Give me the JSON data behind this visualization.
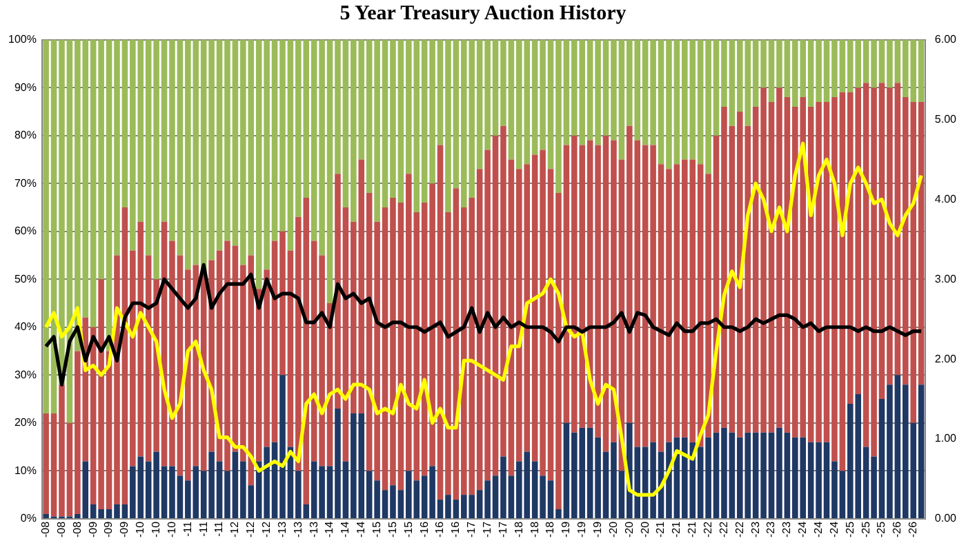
{
  "chart_data": {
    "type": "bar",
    "title": "5 Year Treasury Auction History",
    "stacked": true,
    "grid": "y",
    "legend": false,
    "marker": "none",
    "line_style": "solid",
    "categories": [
      "-08",
      null,
      "-08",
      null,
      "-08",
      null,
      "-09",
      null,
      "-09",
      null,
      "-09",
      null,
      "-10",
      null,
      "-10",
      null,
      "-10",
      null,
      "-11",
      null,
      "-11",
      null,
      "-11",
      null,
      "-12",
      null,
      "-12",
      null,
      "-12",
      null,
      "-13",
      null,
      "-13",
      null,
      "-13",
      null,
      "-14",
      null,
      "-14",
      null,
      "-14",
      null,
      "-15",
      null,
      "-15",
      null,
      "-15",
      null,
      "-16",
      null,
      "-16",
      null,
      "-16",
      null,
      "-17",
      null,
      "-17",
      null,
      "-17",
      null,
      "-18",
      null,
      "-18",
      null,
      "-18",
      null,
      "-19",
      null,
      "-19",
      null,
      "-19",
      null,
      "-20",
      null,
      "-20",
      null,
      "-20",
      null,
      "-21",
      null,
      "-21",
      null,
      "-21",
      null,
      "-22",
      null,
      "-22",
      null,
      "-22",
      null,
      "-23",
      null,
      "-23",
      null,
      "-23",
      null,
      "-24",
      null,
      "-24",
      null,
      "-24",
      null,
      "-25",
      null,
      "-25",
      null,
      "-25",
      null,
      "-26",
      null,
      "-26",
      null
    ],
    "ylim": [
      0,
      100
    ],
    "yticks": [
      {
        "value": 0,
        "label": "0%"
      },
      {
        "value": 10,
        "label": "10%"
      },
      {
        "value": 20,
        "label": "20%"
      },
      {
        "value": 30,
        "label": "30%"
      },
      {
        "value": 40,
        "label": "40%"
      },
      {
        "value": 50,
        "label": "50%"
      },
      {
        "value": 60,
        "label": "60%"
      },
      {
        "value": 70,
        "label": "70%"
      },
      {
        "value": 80,
        "label": "80%"
      },
      {
        "value": 90,
        "label": "90%"
      },
      {
        "value": 100,
        "label": "100%"
      }
    ],
    "y2lim": [
      0,
      6
    ],
    "y2ticks": [
      {
        "value": 0,
        "label": "0.00"
      },
      {
        "value": 1,
        "label": "1.00"
      },
      {
        "value": 2,
        "label": "2.00"
      },
      {
        "value": 3,
        "label": "3.00"
      },
      {
        "value": 4,
        "label": "4.00"
      },
      {
        "value": 5,
        "label": "5.00"
      },
      {
        "value": 6,
        "label": "6.00"
      }
    ],
    "series": [
      {
        "color": "#1f3864",
        "values": [
          1,
          0.5,
          0.5,
          0.5,
          1,
          12,
          3,
          2,
          2,
          3,
          3,
          11,
          13,
          12,
          14,
          11,
          11,
          9,
          8,
          11,
          10,
          14,
          12,
          10,
          14,
          12,
          7,
          12,
          15,
          16,
          30,
          15,
          10,
          3,
          12,
          11,
          11,
          23,
          12,
          22,
          22,
          10,
          8,
          6,
          7,
          6,
          10,
          8,
          9,
          11,
          4,
          5,
          4,
          5,
          5,
          6,
          8,
          9,
          13,
          9,
          12,
          14,
          12,
          9,
          8,
          2,
          20,
          18,
          19,
          19,
          17,
          14,
          16,
          10,
          20,
          15,
          15,
          16,
          14,
          16,
          17,
          17,
          16,
          15,
          17,
          18,
          19,
          18,
          17,
          18,
          18,
          18,
          18,
          19,
          18,
          17,
          17,
          16,
          16,
          16,
          12,
          10,
          24,
          26,
          15,
          13,
          25,
          28,
          30,
          28,
          20,
          28
        ]
      },
      {
        "color": "#c0504d",
        "values": [
          21,
          21.5,
          27.5,
          19.5,
          34,
          30,
          37,
          48,
          33,
          52,
          62,
          45,
          49,
          43,
          36,
          51,
          47,
          46,
          44,
          42,
          42,
          40,
          44,
          48,
          43,
          41,
          48,
          36,
          37,
          42,
          30,
          41,
          53,
          64,
          46,
          44,
          34,
          49,
          53,
          40,
          53,
          58,
          54,
          59,
          60,
          60,
          62,
          56,
          57,
          59,
          74,
          59,
          65,
          60,
          62,
          67,
          69,
          71,
          69,
          66,
          61,
          60,
          64,
          68,
          65,
          66,
          58,
          62,
          59,
          60,
          61,
          66,
          63,
          65,
          62,
          64,
          63,
          62,
          60,
          57,
          57,
          58,
          59,
          59,
          55,
          62,
          67,
          64,
          68,
          64,
          68,
          72,
          69,
          71,
          70,
          69,
          71,
          70,
          71,
          71,
          76,
          79,
          65,
          64,
          76,
          77,
          66,
          62,
          61,
          60,
          67,
          59
        ]
      },
      {
        "color": "#9bbb59",
        "values": [
          78,
          78,
          72,
          80,
          65,
          58,
          60,
          50,
          65,
          45,
          35,
          44,
          38,
          45,
          50,
          38,
          42,
          45,
          48,
          47,
          48,
          46,
          44,
          42,
          43,
          47,
          45,
          52,
          48,
          42,
          40,
          44,
          37,
          33,
          42,
          45,
          55,
          28,
          35,
          38,
          25,
          32,
          38,
          35,
          33,
          34,
          28,
          36,
          34,
          30,
          22,
          36,
          31,
          35,
          33,
          27,
          23,
          20,
          18,
          25,
          27,
          26,
          24,
          23,
          27,
          32,
          22,
          20,
          22,
          21,
          22,
          20,
          21,
          25,
          18,
          21,
          22,
          22,
          26,
          27,
          26,
          25,
          25,
          26,
          28,
          20,
          14,
          18,
          15,
          18,
          14,
          10,
          13,
          10,
          12,
          14,
          12,
          14,
          13,
          13,
          12,
          11,
          11,
          10,
          9,
          10,
          9,
          10,
          9,
          12,
          13,
          13
        ]
      },
      {
        "type": "line",
        "axis": "y2",
        "color": "#000000",
        "values": [
          2.16,
          2.28,
          1.68,
          2.22,
          2.4,
          1.98,
          2.28,
          2.1,
          2.28,
          1.98,
          2.52,
          2.7,
          2.7,
          2.64,
          2.7,
          3.0,
          2.88,
          2.76,
          2.64,
          2.76,
          3.18,
          2.64,
          2.82,
          2.94,
          2.94,
          2.94,
          3.06,
          2.64,
          3.0,
          2.76,
          2.82,
          2.82,
          2.76,
          2.46,
          2.46,
          2.58,
          2.4,
          2.94,
          2.76,
          2.82,
          2.7,
          2.76,
          2.46,
          2.4,
          2.46,
          2.46,
          2.4,
          2.4,
          2.34,
          2.4,
          2.46,
          2.28,
          2.34,
          2.4,
          2.64,
          2.34,
          2.58,
          2.4,
          2.52,
          2.4,
          2.46,
          2.4,
          2.4,
          2.4,
          2.34,
          2.22,
          2.4,
          2.4,
          2.34,
          2.4,
          2.4,
          2.4,
          2.46,
          2.58,
          2.34,
          2.58,
          2.55,
          2.4,
          2.35,
          2.3,
          2.45,
          2.35,
          2.35,
          2.45,
          2.45,
          2.5,
          2.4,
          2.4,
          2.35,
          2.4,
          2.5,
          2.45,
          2.5,
          2.55,
          2.55,
          2.5,
          2.4,
          2.45,
          2.35,
          2.4,
          2.4,
          2.4,
          2.4,
          2.35,
          2.4,
          2.35,
          2.35,
          2.4,
          2.35,
          2.3,
          2.35,
          2.35
        ]
      },
      {
        "type": "line",
        "axis": "y2",
        "color": "#ffff00",
        "values": [
          2.4,
          2.58,
          2.28,
          2.4,
          2.64,
          1.86,
          1.92,
          1.8,
          1.92,
          2.64,
          2.46,
          2.28,
          2.58,
          2.4,
          2.22,
          1.62,
          1.26,
          1.44,
          2.1,
          2.22,
          1.86,
          1.62,
          1.02,
          1.02,
          0.9,
          0.9,
          0.78,
          0.6,
          0.66,
          0.72,
          0.66,
          0.84,
          0.72,
          1.44,
          1.56,
          1.32,
          1.56,
          1.62,
          1.5,
          1.68,
          1.68,
          1.62,
          1.32,
          1.38,
          1.32,
          1.68,
          1.44,
          1.38,
          1.74,
          1.2,
          1.38,
          1.14,
          1.14,
          1.98,
          1.98,
          1.92,
          1.86,
          1.8,
          1.74,
          2.16,
          2.16,
          2.7,
          2.76,
          2.82,
          3.0,
          2.82,
          2.4,
          2.28,
          2.34,
          1.74,
          1.44,
          1.68,
          1.62,
          1.02,
          0.36,
          0.3,
          0.3,
          0.3,
          0.4,
          0.6,
          0.85,
          0.8,
          0.75,
          1.05,
          1.3,
          2.1,
          2.8,
          3.1,
          2.9,
          3.8,
          4.2,
          4.0,
          3.6,
          3.9,
          3.6,
          4.3,
          4.7,
          3.8,
          4.3,
          4.5,
          4.2,
          3.55,
          4.2,
          4.4,
          4.2,
          3.95,
          4.0,
          3.7,
          3.55,
          3.8,
          3.95,
          4.3
        ]
      }
    ]
  }
}
